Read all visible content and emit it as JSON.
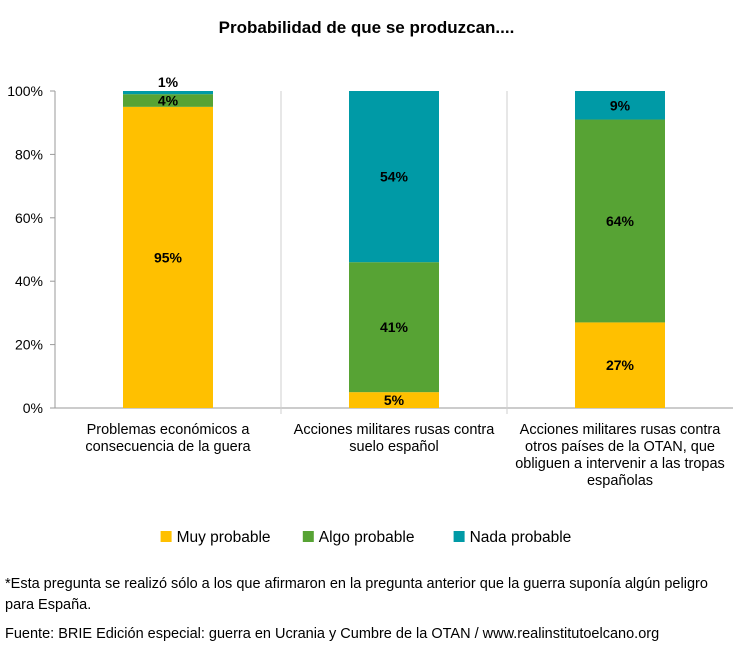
{
  "chart_data": {
    "type": "bar",
    "stacked": true,
    "title": "Probabilidad de que se produzcan....",
    "categories": [
      [
        "Problemas económicos a",
        "consecuencia de la guera"
      ],
      [
        "Acciones militares rusas contra",
        "suelo español"
      ],
      [
        "Acciones militares rusas contra",
        "otros países de la OTAN, que",
        "obliguen a intervenir a las tropas",
        "españolas"
      ]
    ],
    "series": [
      {
        "name": "Muy probable",
        "color": "#FFC000",
        "values": [
          95,
          5,
          27
        ],
        "labels": [
          "95%",
          "5%",
          "27%"
        ]
      },
      {
        "name": "Algo probable",
        "color": "#57A334",
        "values": [
          4,
          41,
          64
        ],
        "labels": [
          "4%",
          "41%",
          "64%"
        ]
      },
      {
        "name": "Nada probable",
        "color": "#009AA6",
        "values": [
          1,
          54,
          9
        ],
        "labels": [
          "1%",
          "54%",
          "9%"
        ]
      }
    ],
    "yticks": [
      "0%",
      "20%",
      "40%",
      "60%",
      "80%",
      "100%"
    ],
    "ylim": [
      0,
      100
    ],
    "legend_position": "bottom",
    "grid": false
  },
  "footnote": "*Esta pregunta se realizó sólo a los que afirmaron en la pregunta anterior que la guerra suponía algún peligro para España.",
  "source": "Fuente: BRIE Edición especial: guerra en Ucrania y Cumbre de la OTAN / www.realinstitutoelcano.org"
}
